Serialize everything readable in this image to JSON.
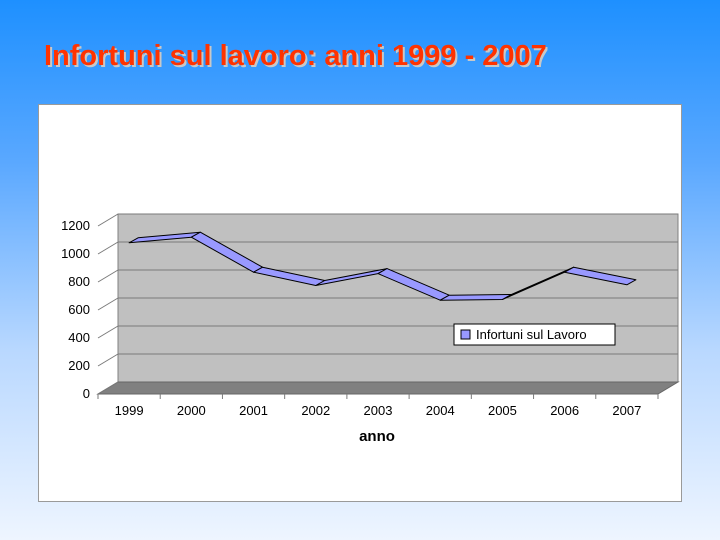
{
  "slide": {
    "title": "Infortuni sul lavoro:  anni 1999 - 2007"
  },
  "colors": {
    "title": "#ff3300",
    "plot_wall": "#c0c0c0",
    "plot_floor": "#808080",
    "ribbon_fill": "#9999ff",
    "ribbon_stroke": "#000000"
  },
  "chart_data": {
    "type": "line",
    "style": "3d-ribbon",
    "categories": [
      "1999",
      "2000",
      "2001",
      "2002",
      "2003",
      "2004",
      "2005",
      "2006",
      "2007"
    ],
    "series": [
      {
        "name": "Infortuni sul Lavoro",
        "values": [
          1080,
          1120,
          870,
          775,
          860,
          670,
          675,
          870,
          780
        ]
      }
    ],
    "xlabel": "anno",
    "ylabel": "",
    "ylim": [
      0,
      1200
    ],
    "yticks": [
      "0",
      "200",
      "400",
      "600",
      "800",
      "1000",
      "1200"
    ],
    "grid": true,
    "legend_position": "right"
  }
}
